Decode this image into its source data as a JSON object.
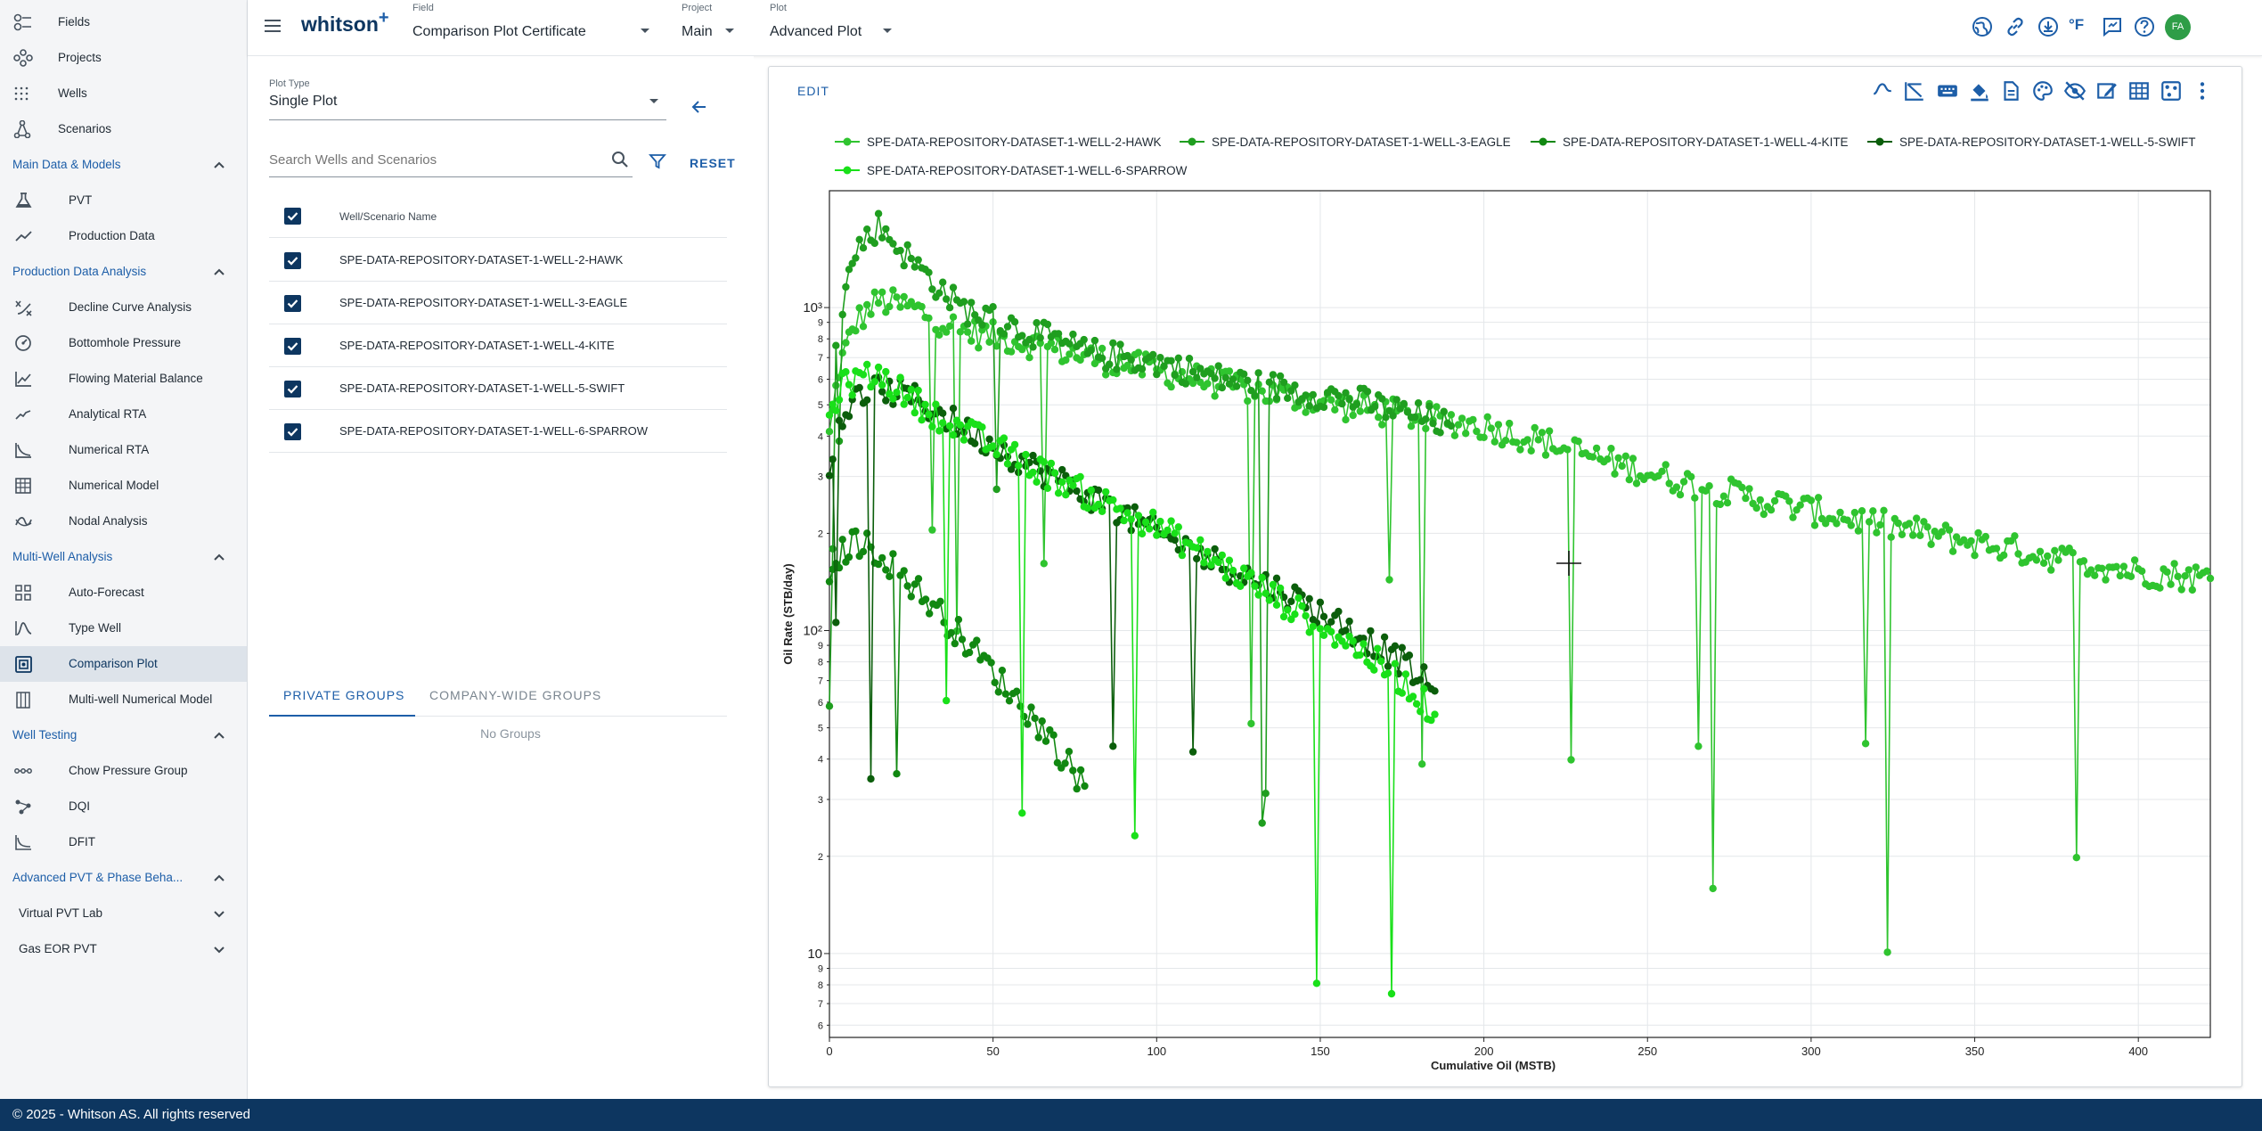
{
  "sidebar": {
    "top_items": [
      {
        "label": "Fields",
        "icon": "fields-icon"
      },
      {
        "label": "Projects",
        "icon": "projects-icon"
      },
      {
        "label": "Wells",
        "icon": "wells-icon"
      },
      {
        "label": "Scenarios",
        "icon": "scenarios-icon"
      }
    ],
    "sections": [
      {
        "title": "Main Data & Models",
        "expanded": true,
        "items": [
          {
            "label": "PVT",
            "icon": "flask-icon"
          },
          {
            "label": "Production Data",
            "icon": "line-trend-icon"
          }
        ]
      },
      {
        "title": "Production Data Analysis",
        "expanded": true,
        "items": [
          {
            "label": "Decline Curve Analysis",
            "icon": "decline-curve-icon"
          },
          {
            "label": "Bottomhole Pressure",
            "icon": "gauge-icon"
          },
          {
            "label": "Flowing Material Balance",
            "icon": "chart-icon"
          },
          {
            "label": "Analytical RTA",
            "icon": "analytical-rta-icon"
          },
          {
            "label": "Numerical RTA",
            "icon": "numerical-rta-icon"
          },
          {
            "label": "Numerical Model",
            "icon": "grid-model-icon"
          },
          {
            "label": "Nodal Analysis",
            "icon": "nodal-icon"
          }
        ]
      },
      {
        "title": "Multi-Well Analysis",
        "expanded": true,
        "items": [
          {
            "label": "Auto-Forecast",
            "icon": "auto-forecast-icon"
          },
          {
            "label": "Type Well",
            "icon": "type-well-icon"
          },
          {
            "label": "Comparison Plot",
            "icon": "comparison-plot-icon",
            "active": true
          },
          {
            "label": "Multi-well Numerical Model",
            "icon": "multiwell-model-icon"
          }
        ]
      },
      {
        "title": "Well Testing",
        "expanded": true,
        "items": [
          {
            "label": "Chow Pressure Group",
            "icon": "chow-icon"
          },
          {
            "label": "DQI",
            "icon": "dqi-icon"
          },
          {
            "label": "DFIT",
            "icon": "dfit-icon"
          }
        ]
      },
      {
        "title": "Advanced PVT & Phase Beha...",
        "expanded": true,
        "items": []
      }
    ],
    "subsections": [
      {
        "title": "Virtual PVT Lab",
        "expanded": false
      },
      {
        "title": "Gas EOR PVT",
        "expanded": false
      }
    ]
  },
  "topbar": {
    "logo": "whitson",
    "logo_plus": "+",
    "field_caption": "Field",
    "field_value": "Comparison Plot Certificate",
    "project_caption": "Project",
    "project_value": "Main",
    "plot_caption": "Plot",
    "plot_value": "Advanced Plot",
    "icons": [
      "globe-icon",
      "link-icon",
      "download-icon",
      "fahrenheit-icon",
      "feedback-icon",
      "help-icon"
    ],
    "fahrenheit_label": "°F",
    "avatar_initials": "FA",
    "accent": "#1d5ea8",
    "avatar_color": "#2e9d47"
  },
  "left_panel": {
    "plot_type_caption": "Plot Type",
    "plot_type_value": "Single Plot",
    "search_placeholder": "Search Wells and Scenarios",
    "reset_label": "RESET",
    "column_header": "Well/Scenario Name",
    "wells": [
      {
        "name": "SPE-DATA-REPOSITORY-DATASET-1-WELL-2-HAWK",
        "checked": true
      },
      {
        "name": "SPE-DATA-REPOSITORY-DATASET-1-WELL-3-EAGLE",
        "checked": true
      },
      {
        "name": "SPE-DATA-REPOSITORY-DATASET-1-WELL-4-KITE",
        "checked": true
      },
      {
        "name": "SPE-DATA-REPOSITORY-DATASET-1-WELL-5-SWIFT",
        "checked": true
      },
      {
        "name": "SPE-DATA-REPOSITORY-DATASET-1-WELL-6-SPARROW",
        "checked": true
      }
    ],
    "tabs": [
      {
        "label": "PRIVATE GROUPS",
        "active": true
      },
      {
        "label": "COMPANY-WIDE GROUPS",
        "active": false
      }
    ],
    "no_groups": "No Groups"
  },
  "plot_card": {
    "edit_label": "EDIT",
    "toolbar_icons": [
      "curve-fit-icon",
      "decline-icon",
      "keyboard-icon",
      "paint-bucket-icon",
      "document-icon",
      "palette-icon",
      "hide-icon",
      "annotate-icon",
      "table-icon",
      "scatter-select-icon",
      "more-vert-icon"
    ]
  },
  "chart_data": {
    "type": "scatter",
    "mode": "lines+markers",
    "xlabel": "Cumulative Oil (MSTB)",
    "ylabel": "Oil Rate (STB/day)",
    "xlim": [
      0,
      422
    ],
    "ylim": [
      5.5,
      2300
    ],
    "y_scale": "log",
    "grid": true,
    "legend_position": "top",
    "x_ticks": [
      0,
      50,
      100,
      150,
      200,
      250,
      300,
      350,
      400
    ],
    "y_major_ticks": [
      {
        "value": 10,
        "label": "10"
      },
      {
        "value": 100,
        "label": "10²"
      },
      {
        "value": 1000,
        "label": "10³"
      }
    ],
    "y_minor_ticks": [
      {
        "value": 6,
        "label": "6"
      },
      {
        "value": 7,
        "label": "7"
      },
      {
        "value": 8,
        "label": "8"
      },
      {
        "value": 9,
        "label": "9"
      },
      {
        "value": 20,
        "label": "2"
      },
      {
        "value": 30,
        "label": "3"
      },
      {
        "value": 40,
        "label": "4"
      },
      {
        "value": 50,
        "label": "5"
      },
      {
        "value": 60,
        "label": "6"
      },
      {
        "value": 70,
        "label": "7"
      },
      {
        "value": 80,
        "label": "8"
      },
      {
        "value": 90,
        "label": "9"
      },
      {
        "value": 200,
        "label": "2"
      },
      {
        "value": 300,
        "label": "3"
      },
      {
        "value": 400,
        "label": "4"
      },
      {
        "value": 500,
        "label": "5"
      },
      {
        "value": 600,
        "label": "6"
      },
      {
        "value": 700,
        "label": "7"
      },
      {
        "value": 800,
        "label": "8"
      },
      {
        "value": 900,
        "label": "9"
      }
    ],
    "series": [
      {
        "name": "SPE-DATA-REPOSITORY-DATASET-1-WELL-2-HAWK",
        "color": "#2fc42f",
        "x": [
          0,
          3,
          8,
          15,
          25,
          40,
          60,
          80,
          100,
          120,
          140,
          160,
          180,
          200,
          220,
          240,
          260,
          280,
          300,
          320,
          340,
          360,
          380,
          400,
          422
        ],
        "y": [
          400,
          650,
          900,
          1050,
          1000,
          850,
          780,
          700,
          640,
          580,
          530,
          490,
          460,
          430,
          380,
          330,
          290,
          260,
          235,
          215,
          195,
          180,
          165,
          152,
          145
        ]
      },
      {
        "name": "SPE-DATA-REPOSITORY-DATASET-1-WELL-3-EAGLE",
        "color": "#1f9e1f",
        "x": [
          0,
          3,
          8,
          15,
          25,
          40,
          60,
          80,
          100,
          120,
          140,
          160,
          180,
          190
        ],
        "y": [
          500,
          950,
          1500,
          1800,
          1400,
          1000,
          850,
          720,
          680,
          600,
          560,
          520,
          460,
          430
        ]
      },
      {
        "name": "SPE-DATA-REPOSITORY-DATASET-1-WELL-4-KITE",
        "color": "#118811",
        "x": [
          0,
          3,
          8,
          15,
          25,
          35,
          45,
          55,
          65,
          72,
          78
        ],
        "y": [
          130,
          170,
          190,
          175,
          140,
          110,
          85,
          65,
          50,
          40,
          33
        ]
      },
      {
        "name": "SPE-DATA-REPOSITORY-DATASET-1-WELL-5-SWIFT",
        "color": "#0b5e0b",
        "x": [
          0,
          3,
          8,
          15,
          25,
          40,
          60,
          80,
          100,
          120,
          140,
          160,
          175,
          185
        ],
        "y": [
          300,
          450,
          520,
          560,
          530,
          430,
          330,
          260,
          200,
          160,
          130,
          100,
          80,
          65
        ]
      },
      {
        "name": "SPE-DATA-REPOSITORY-DATASET-1-WELL-6-SPARROW",
        "color": "#19e019",
        "x": [
          0,
          3,
          8,
          15,
          25,
          40,
          60,
          80,
          100,
          120,
          140,
          160,
          175,
          185
        ],
        "y": [
          450,
          560,
          600,
          620,
          520,
          420,
          330,
          260,
          210,
          160,
          120,
          90,
          70,
          55
        ]
      }
    ]
  }
}
